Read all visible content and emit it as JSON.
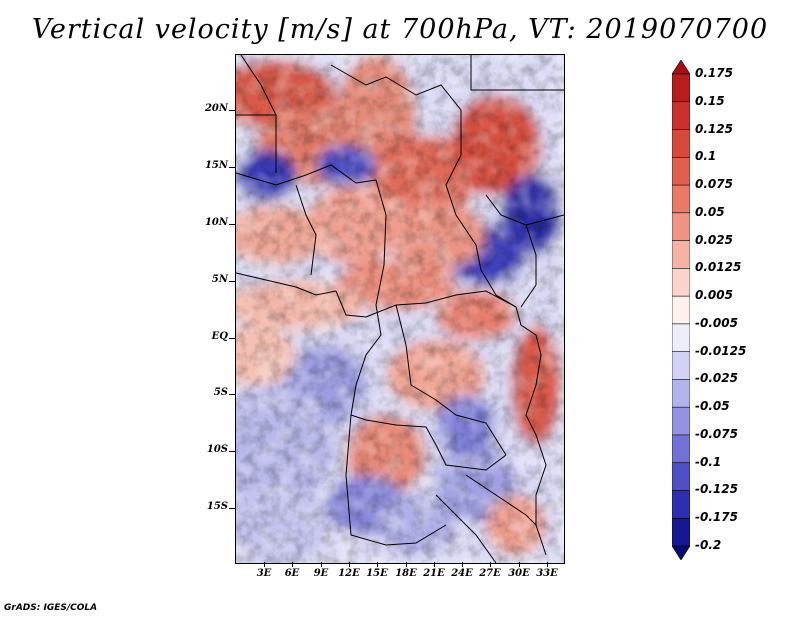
{
  "title": "Vertical velocity [m/s] at 700hPa, VT: 2019070700",
  "map": {
    "variable": "Vertical velocity",
    "units": "m/s",
    "level": "700hPa",
    "valid_time": "2019070700",
    "region": "Central Africa"
  },
  "lat_labels": [
    "20N",
    "15N",
    "10N",
    "5N",
    "EQ",
    "5S",
    "10S",
    "15S"
  ],
  "lon_labels": [
    "3E",
    "6E",
    "9E",
    "12E",
    "15E",
    "18E",
    "21E",
    "24E",
    "27E",
    "30E",
    "33E"
  ],
  "colorbar": {
    "labels": [
      "0.175",
      "0.15",
      "0.125",
      "0.1",
      "0.075",
      "0.05",
      "0.025",
      "0.0125",
      "0.005",
      "-0.005",
      "-0.0125",
      "-0.025",
      "-0.05",
      "-0.075",
      "-0.1",
      "-0.125",
      "-0.175",
      "-0.2"
    ],
    "colors": [
      "#a50f15",
      "#b81d1d",
      "#c9312c",
      "#d64a3e",
      "#e0604f",
      "#e87a66",
      "#ef9484",
      "#f5b3a6",
      "#fad4cc",
      "#fdf0ed",
      "#eeeefb",
      "#d2d2f4",
      "#b3b3ec",
      "#9393e2",
      "#7171d6",
      "#4f4fc6",
      "#2e2eb1",
      "#171790",
      "#0a0a73"
    ]
  },
  "credit": "GrADS: IGES/COLA"
}
